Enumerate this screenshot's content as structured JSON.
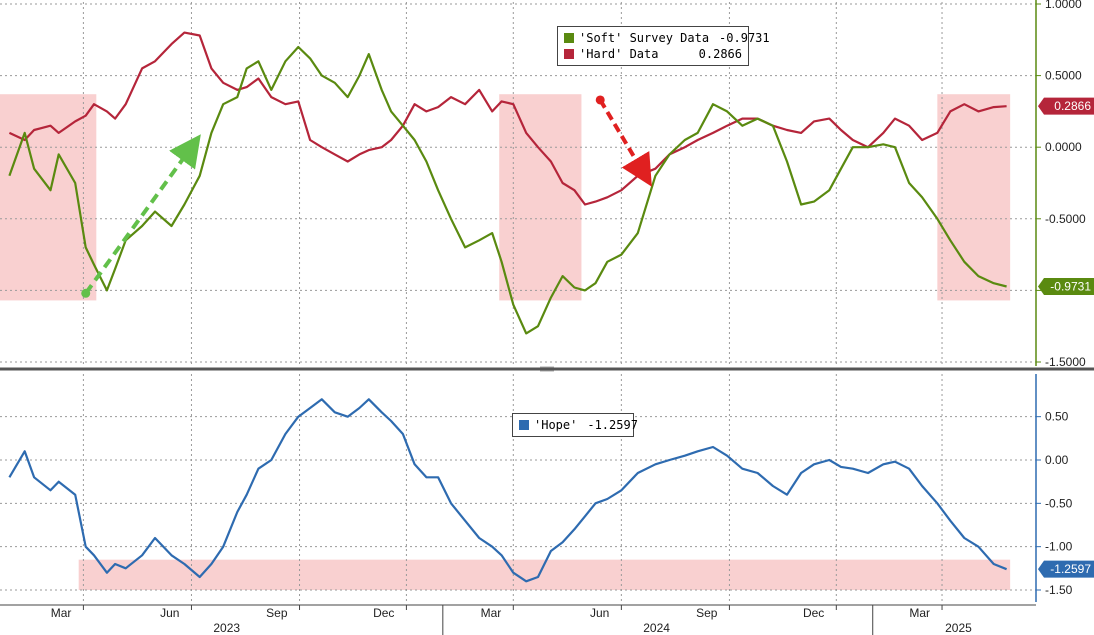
{
  "chart_data": [
    {
      "type": "line",
      "panel": "top",
      "series": [
        {
          "name": "'Soft' Survey Data",
          "last_value": "-0.9731",
          "color": "#5a8a10",
          "x": [
            "2022-12-28",
            "2023-01-10",
            "2023-01-18",
            "2023-02-01",
            "2023-02-08",
            "2023-02-22",
            "2023-03-03",
            "2023-03-10",
            "2023-03-21",
            "2023-03-28",
            "2023-04-06",
            "2023-04-20",
            "2023-05-01",
            "2023-05-15",
            "2023-05-26",
            "2023-06-08",
            "2023-06-18",
            "2023-06-28",
            "2023-07-10",
            "2023-07-18",
            "2023-07-28",
            "2023-08-08",
            "2023-08-20",
            "2023-08-31",
            "2023-09-10",
            "2023-09-20",
            "2023-10-01",
            "2023-10-12",
            "2023-10-22",
            "2023-10-30",
            "2023-11-10",
            "2023-11-18",
            "2023-11-28",
            "2023-12-08",
            "2023-12-18",
            "2023-12-28",
            "2024-01-08",
            "2024-01-20",
            "2024-02-01",
            "2024-02-12",
            "2024-02-20",
            "2024-03-01",
            "2024-03-12",
            "2024-03-22",
            "2024-04-02",
            "2024-04-12",
            "2024-04-22",
            "2024-05-01",
            "2024-05-10",
            "2024-05-20",
            "2024-06-01",
            "2024-06-15",
            "2024-06-30",
            "2024-07-12",
            "2024-07-25",
            "2024-08-05",
            "2024-08-18",
            "2024-08-30",
            "2024-09-12",
            "2024-09-25",
            "2024-10-08",
            "2024-10-20",
            "2024-11-01",
            "2024-11-12",
            "2024-11-25",
            "2024-12-05",
            "2024-12-15",
            "2024-12-28",
            "2025-01-10",
            "2025-01-20",
            "2025-02-01",
            "2025-02-12",
            "2025-02-25",
            "2025-03-08",
            "2025-03-20",
            "2025-04-01",
            "2025-04-14",
            "2025-04-25"
          ],
          "y": [
            -0.2,
            0.1,
            -0.15,
            -0.3,
            -0.05,
            -0.25,
            -0.7,
            -0.82,
            -1.0,
            -0.85,
            -0.65,
            -0.55,
            -0.45,
            -0.55,
            -0.4,
            -0.2,
            0.1,
            0.3,
            0.35,
            0.55,
            0.6,
            0.4,
            0.6,
            0.7,
            0.62,
            0.5,
            0.45,
            0.35,
            0.5,
            0.65,
            0.4,
            0.25,
            0.15,
            0.05,
            -0.1,
            -0.3,
            -0.5,
            -0.7,
            -0.65,
            -0.6,
            -0.8,
            -1.1,
            -1.3,
            -1.25,
            -1.05,
            -0.9,
            -0.98,
            -1.0,
            -0.95,
            -0.8,
            -0.75,
            -0.6,
            -0.2,
            -0.05,
            0.05,
            0.1,
            0.3,
            0.25,
            0.15,
            0.2,
            0.15,
            -0.1,
            -0.4,
            -0.38,
            -0.3,
            -0.15,
            0.0,
            0.0,
            0.02,
            0.0,
            -0.25,
            -0.35,
            -0.5,
            -0.65,
            -0.8,
            -0.9,
            -0.95,
            -0.9731
          ]
        },
        {
          "name": "'Hard' Data",
          "last_value": "0.2866",
          "color": "#b5253a",
          "x": [
            "2022-12-28",
            "2023-01-10",
            "2023-01-18",
            "2023-02-01",
            "2023-02-08",
            "2023-02-22",
            "2023-03-03",
            "2023-03-10",
            "2023-03-21",
            "2023-03-28",
            "2023-04-06",
            "2023-04-20",
            "2023-05-01",
            "2023-05-15",
            "2023-05-26",
            "2023-06-08",
            "2023-06-18",
            "2023-06-28",
            "2023-07-10",
            "2023-07-18",
            "2023-07-28",
            "2023-08-08",
            "2023-08-20",
            "2023-08-31",
            "2023-09-10",
            "2023-09-20",
            "2023-10-01",
            "2023-10-12",
            "2023-10-22",
            "2023-10-30",
            "2023-11-10",
            "2023-11-18",
            "2023-11-28",
            "2023-12-08",
            "2023-12-18",
            "2023-12-28",
            "2024-01-08",
            "2024-01-20",
            "2024-02-01",
            "2024-02-12",
            "2024-02-20",
            "2024-03-01",
            "2024-03-12",
            "2024-03-22",
            "2024-04-02",
            "2024-04-12",
            "2024-04-22",
            "2024-05-01",
            "2024-05-10",
            "2024-05-20",
            "2024-06-01",
            "2024-06-15",
            "2024-06-30",
            "2024-07-12",
            "2024-07-25",
            "2024-08-05",
            "2024-08-18",
            "2024-08-30",
            "2024-09-12",
            "2024-09-25",
            "2024-10-08",
            "2024-10-20",
            "2024-11-01",
            "2024-11-12",
            "2024-11-25",
            "2024-12-05",
            "2024-12-15",
            "2024-12-28",
            "2025-01-10",
            "2025-01-20",
            "2025-02-01",
            "2025-02-12",
            "2025-02-25",
            "2025-03-08",
            "2025-03-20",
            "2025-04-01",
            "2025-04-14",
            "2025-04-25"
          ],
          "y": [
            0.1,
            0.05,
            0.12,
            0.15,
            0.1,
            0.18,
            0.22,
            0.3,
            0.25,
            0.2,
            0.3,
            0.55,
            0.6,
            0.72,
            0.8,
            0.78,
            0.55,
            0.45,
            0.4,
            0.42,
            0.48,
            0.35,
            0.3,
            0.32,
            0.05,
            0.0,
            -0.05,
            -0.1,
            -0.05,
            -0.02,
            0.0,
            0.05,
            0.15,
            0.3,
            0.25,
            0.28,
            0.35,
            0.3,
            0.4,
            0.25,
            0.32,
            0.3,
            0.1,
            0.0,
            -0.1,
            -0.25,
            -0.3,
            -0.4,
            -0.38,
            -0.35,
            -0.3,
            -0.2,
            -0.15,
            -0.05,
            0.0,
            0.05,
            0.1,
            0.15,
            0.2,
            0.2,
            0.15,
            0.12,
            0.1,
            0.18,
            0.2,
            0.12,
            0.05,
            0.0,
            0.1,
            0.2,
            0.15,
            0.05,
            0.1,
            0.25,
            0.3,
            0.25,
            0.28,
            0.2866
          ]
        }
      ],
      "ylim": [
        -1.5,
        1.0
      ],
      "yticks": [
        "1.0000",
        "0.5000",
        "0.0000",
        "-0.5000",
        "-1.0000",
        "-1.5000"
      ],
      "annotations": [
        "green dashed arrow up (Mar 2023 to Jun 2023)",
        "red dashed arrow down (May 2024 to Jun 2024)"
      ],
      "shaded_regions": [
        [
          "2022-12-20",
          "2023-03-12"
        ],
        [
          "2024-02-18",
          "2024-04-28"
        ],
        [
          "2025-02-25",
          "2025-04-28"
        ]
      ],
      "legend_position": "top-center",
      "grid": true
    },
    {
      "type": "line",
      "panel": "bottom",
      "series": [
        {
          "name": "'Hope'",
          "last_value": "-1.2597",
          "color": "#2e6bb0",
          "x": [
            "2022-12-28",
            "2023-01-10",
            "2023-01-18",
            "2023-02-01",
            "2023-02-08",
            "2023-02-22",
            "2023-03-03",
            "2023-03-10",
            "2023-03-21",
            "2023-03-28",
            "2023-04-06",
            "2023-04-20",
            "2023-05-01",
            "2023-05-15",
            "2023-05-26",
            "2023-06-08",
            "2023-06-18",
            "2023-06-28",
            "2023-07-10",
            "2023-07-18",
            "2023-07-28",
            "2023-08-08",
            "2023-08-20",
            "2023-08-31",
            "2023-09-10",
            "2023-09-20",
            "2023-10-01",
            "2023-10-12",
            "2023-10-22",
            "2023-10-30",
            "2023-11-10",
            "2023-11-18",
            "2023-11-28",
            "2023-12-08",
            "2023-12-18",
            "2023-12-28",
            "2024-01-08",
            "2024-01-20",
            "2024-02-01",
            "2024-02-12",
            "2024-02-20",
            "2024-03-01",
            "2024-03-12",
            "2024-03-22",
            "2024-04-02",
            "2024-04-12",
            "2024-04-22",
            "2024-05-01",
            "2024-05-10",
            "2024-05-20",
            "2024-06-01",
            "2024-06-15",
            "2024-06-30",
            "2024-07-12",
            "2024-07-25",
            "2024-08-05",
            "2024-08-18",
            "2024-08-30",
            "2024-09-12",
            "2024-09-25",
            "2024-10-08",
            "2024-10-20",
            "2024-11-01",
            "2024-11-12",
            "2024-11-25",
            "2024-12-05",
            "2024-12-15",
            "2024-12-28",
            "2025-01-10",
            "2025-01-20",
            "2025-02-01",
            "2025-02-12",
            "2025-02-25",
            "2025-03-08",
            "2025-03-20",
            "2025-04-01",
            "2025-04-14",
            "2025-04-25"
          ],
          "y": [
            -0.2,
            0.1,
            -0.2,
            -0.35,
            -0.25,
            -0.4,
            -1.0,
            -1.1,
            -1.3,
            -1.2,
            -1.25,
            -1.1,
            -0.9,
            -1.1,
            -1.2,
            -1.35,
            -1.2,
            -1.0,
            -0.6,
            -0.4,
            -0.1,
            0.0,
            0.3,
            0.5,
            0.6,
            0.7,
            0.55,
            0.5,
            0.6,
            0.7,
            0.55,
            0.45,
            0.3,
            -0.05,
            -0.2,
            -0.2,
            -0.5,
            -0.7,
            -0.9,
            -1.0,
            -1.1,
            -1.3,
            -1.4,
            -1.35,
            -1.05,
            -0.95,
            -0.8,
            -0.65,
            -0.5,
            -0.45,
            -0.35,
            -0.15,
            -0.05,
            0.0,
            0.05,
            0.1,
            0.15,
            0.05,
            -0.1,
            -0.15,
            -0.3,
            -0.4,
            -0.15,
            -0.05,
            0.0,
            -0.08,
            -0.1,
            -0.15,
            -0.05,
            -0.02,
            -0.1,
            -0.3,
            -0.5,
            -0.7,
            -0.9,
            -1.0,
            -1.2,
            -1.2597
          ]
        }
      ],
      "ylim": [
        -1.5,
        0.75
      ],
      "yticks": [
        "0.50",
        "0.00",
        "-0.50",
        "-1.00",
        "-1.50"
      ],
      "shaded_regions": [
        [
          "2023-02-25",
          "2025-04-28"
        ]
      ],
      "shaded_y": [
        -1.5,
        -1.15
      ],
      "legend_position": "top-center",
      "grid": true
    }
  ],
  "x_axis": {
    "month_labels": [
      {
        "label": "Mar",
        "date": "2023-03-01"
      },
      {
        "label": "Jun",
        "date": "2023-06-01"
      },
      {
        "label": "Sep",
        "date": "2023-09-01"
      },
      {
        "label": "Dec",
        "date": "2023-12-01"
      },
      {
        "label": "Mar",
        "date": "2024-03-01"
      },
      {
        "label": "Jun",
        "date": "2024-06-01"
      },
      {
        "label": "Sep",
        "date": "2024-09-01"
      },
      {
        "label": "Dec",
        "date": "2024-12-01"
      },
      {
        "label": "Mar",
        "date": "2025-03-01"
      }
    ],
    "year_labels": [
      {
        "label": "2023",
        "date": "2023-07-01"
      },
      {
        "label": "2024",
        "date": "2024-07-01"
      },
      {
        "label": "2025",
        "date": "2025-03-15"
      }
    ],
    "range": [
      "2022-12-20",
      "2025-05-20"
    ]
  },
  "legends": {
    "top": {
      "soft_label": "'Soft' Survey Data",
      "soft_value": "-0.9731",
      "hard_label": "'Hard' Data",
      "hard_value": "0.2866"
    },
    "bottom": {
      "hope_label": "'Hope'",
      "hope_value": "-1.2597"
    }
  },
  "colors": {
    "soft": "#5a8a10",
    "hard": "#b5253a",
    "hope": "#2e6bb0",
    "shade": "#f9d0d0",
    "arrow_up": "#62c04a",
    "arrow_down": "#e02020"
  }
}
